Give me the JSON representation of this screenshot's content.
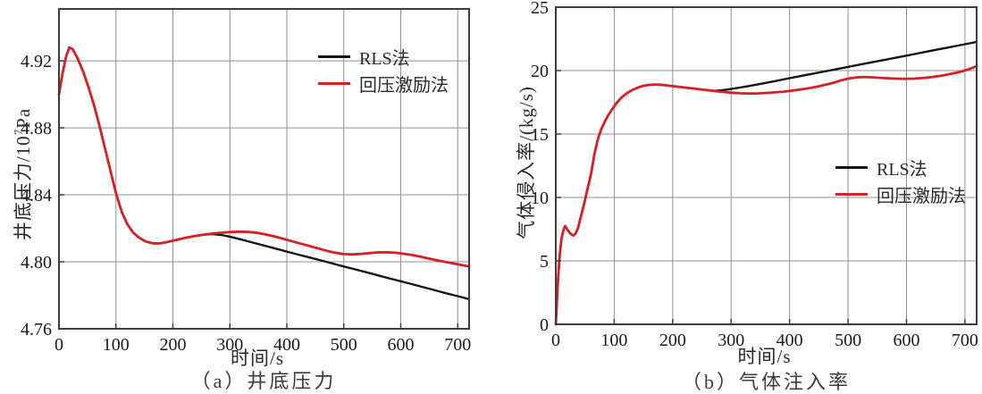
{
  "chart_data": [
    {
      "id": "a",
      "type": "line",
      "caption": "（a）井底压力",
      "xlabel": "时间/s",
      "ylabel": "井底压力/10⁷Pa",
      "ylabel_parts": {
        "base": "井底压力/10",
        "sup": "7",
        "unit": "Pa"
      },
      "xlim": [
        0,
        720
      ],
      "ylim": [
        4.76,
        4.951
      ],
      "xticks": [
        0,
        100,
        200,
        300,
        400,
        500,
        600,
        700
      ],
      "xtick_labels": [
        "0",
        "100",
        "200",
        "300",
        "400",
        "500",
        "600",
        "700"
      ],
      "yticks": [
        4.76,
        4.8,
        4.84,
        4.88,
        4.92
      ],
      "ytick_labels": [
        "4.76",
        "4.80",
        "4.84",
        "4.88",
        "4.92"
      ],
      "grid": true,
      "legend_position": "upper-right-inside",
      "series": [
        {
          "name": "RLS法",
          "color": "#141414",
          "width": 2.4,
          "points": [
            [
              0,
              4.9
            ],
            [
              6,
              4.912
            ],
            [
              12,
              4.922
            ],
            [
              18,
              4.928
            ],
            [
              24,
              4.927
            ],
            [
              32,
              4.922
            ],
            [
              42,
              4.914
            ],
            [
              52,
              4.904
            ],
            [
              62,
              4.893
            ],
            [
              72,
              4.88
            ],
            [
              82,
              4.866
            ],
            [
              92,
              4.852
            ],
            [
              100,
              4.841
            ],
            [
              110,
              4.83
            ],
            [
              120,
              4.8225
            ],
            [
              130,
              4.8175
            ],
            [
              140,
              4.8145
            ],
            [
              152,
              4.8122
            ],
            [
              165,
              4.811
            ],
            [
              178,
              4.811
            ],
            [
              190,
              4.8118
            ],
            [
              205,
              4.813
            ],
            [
              220,
              4.8142
            ],
            [
              240,
              4.8155
            ],
            [
              255,
              4.8162
            ],
            [
              270,
              4.8165
            ],
            [
              285,
              4.816
            ],
            [
              300,
              4.815
            ],
            [
              320,
              4.8133
            ],
            [
              340,
              4.8115
            ],
            [
              360,
              4.8097
            ],
            [
              380,
              4.8079
            ],
            [
              400,
              4.8061
            ],
            [
              420,
              4.8043
            ],
            [
              440,
              4.8026
            ],
            [
              460,
              4.8008
            ],
            [
              480,
              4.799
            ],
            [
              500,
              4.7972
            ],
            [
              520,
              4.7955
            ],
            [
              540,
              4.7937
            ],
            [
              560,
              4.7919
            ],
            [
              580,
              4.7901
            ],
            [
              600,
              4.7884
            ],
            [
              620,
              4.7866
            ],
            [
              640,
              4.7848
            ],
            [
              660,
              4.783
            ],
            [
              680,
              4.7812
            ],
            [
              700,
              4.7795
            ],
            [
              720,
              4.7777
            ]
          ]
        },
        {
          "name": "回压激励法",
          "color": "#d42127",
          "width": 2.8,
          "points": [
            [
              0,
              4.9
            ],
            [
              6,
              4.912
            ],
            [
              12,
              4.922
            ],
            [
              18,
              4.928
            ],
            [
              24,
              4.927
            ],
            [
              32,
              4.922
            ],
            [
              42,
              4.914
            ],
            [
              52,
              4.904
            ],
            [
              62,
              4.893
            ],
            [
              72,
              4.88
            ],
            [
              82,
              4.866
            ],
            [
              92,
              4.852
            ],
            [
              100,
              4.841
            ],
            [
              110,
              4.83
            ],
            [
              120,
              4.8225
            ],
            [
              130,
              4.8175
            ],
            [
              140,
              4.8145
            ],
            [
              152,
              4.8122
            ],
            [
              165,
              4.811
            ],
            [
              178,
              4.811
            ],
            [
              190,
              4.8118
            ],
            [
              205,
              4.813
            ],
            [
              220,
              4.8142
            ],
            [
              240,
              4.8155
            ],
            [
              260,
              4.8165
            ],
            [
              280,
              4.8172
            ],
            [
              300,
              4.8178
            ],
            [
              320,
              4.818
            ],
            [
              335,
              4.8178
            ],
            [
              350,
              4.8172
            ],
            [
              365,
              4.8162
            ],
            [
              380,
              4.815
            ],
            [
              395,
              4.8136
            ],
            [
              410,
              4.8122
            ],
            [
              425,
              4.8108
            ],
            [
              440,
              4.8094
            ],
            [
              455,
              4.808
            ],
            [
              470,
              4.8066
            ],
            [
              485,
              4.8054
            ],
            [
              500,
              4.8046
            ],
            [
              515,
              4.8044
            ],
            [
              530,
              4.8047
            ],
            [
              545,
              4.8052
            ],
            [
              560,
              4.8056
            ],
            [
              575,
              4.8057
            ],
            [
              590,
              4.8054
            ],
            [
              605,
              4.8048
            ],
            [
              620,
              4.804
            ],
            [
              635,
              4.803
            ],
            [
              650,
              4.8019
            ],
            [
              665,
              4.8008
            ],
            [
              680,
              4.7998
            ],
            [
              695,
              4.7988
            ],
            [
              708,
              4.798
            ],
            [
              720,
              4.7972
            ]
          ]
        }
      ]
    },
    {
      "id": "b",
      "type": "line",
      "caption": "（b）气体注入率",
      "xlabel": "时间/s",
      "ylabel": "气体侵入率/(kg/s)",
      "ylabel_parts": {
        "base": "气体侵入率/(kg/s)",
        "sup": "",
        "unit": ""
      },
      "xlim": [
        0,
        720
      ],
      "ylim": [
        0,
        25
      ],
      "xticks": [
        0,
        100,
        200,
        300,
        400,
        500,
        600,
        700
      ],
      "xtick_labels": [
        "0",
        "100",
        "200",
        "300",
        "400",
        "500",
        "600",
        "700"
      ],
      "yticks": [
        0,
        5,
        10,
        15,
        20,
        25
      ],
      "ytick_labels": [
        "0",
        "5",
        "10",
        "15",
        "20",
        "25"
      ],
      "grid": true,
      "legend_position": "middle-right-inside",
      "series": [
        {
          "name": "RLS法",
          "color": "#141414",
          "width": 2.4,
          "points": [
            [
              0,
              0
            ],
            [
              2,
              1.8
            ],
            [
              4,
              3.6
            ],
            [
              6,
              5.0
            ],
            [
              8,
              6.0
            ],
            [
              10,
              6.8
            ],
            [
              13,
              7.4
            ],
            [
              16,
              7.75
            ],
            [
              20,
              7.45
            ],
            [
              25,
              7.15
            ],
            [
              30,
              7.0
            ],
            [
              34,
              7.15
            ],
            [
              38,
              7.6
            ],
            [
              43,
              8.5
            ],
            [
              48,
              9.4
            ],
            [
              54,
              10.6
            ],
            [
              60,
              11.8
            ],
            [
              66,
              13.4
            ],
            [
              72,
              14.6
            ],
            [
              78,
              15.4
            ],
            [
              84,
              16.0
            ],
            [
              90,
              16.5
            ],
            [
              97,
              17.0
            ],
            [
              105,
              17.5
            ],
            [
              113,
              17.9
            ],
            [
              121,
              18.2
            ],
            [
              130,
              18.45
            ],
            [
              140,
              18.65
            ],
            [
              150,
              18.8
            ],
            [
              160,
              18.87
            ],
            [
              170,
              18.9
            ],
            [
              182,
              18.87
            ],
            [
              195,
              18.8
            ],
            [
              210,
              18.72
            ],
            [
              225,
              18.64
            ],
            [
              240,
              18.56
            ],
            [
              255,
              18.48
            ],
            [
              270,
              18.4
            ],
            [
              285,
              18.45
            ],
            [
              300,
              18.55
            ],
            [
              315,
              18.66
            ],
            [
              330,
              18.78
            ],
            [
              350,
              18.95
            ],
            [
              375,
              19.17
            ],
            [
              400,
              19.4
            ],
            [
              430,
              19.67
            ],
            [
              460,
              19.93
            ],
            [
              490,
              20.2
            ],
            [
              520,
              20.47
            ],
            [
              550,
              20.73
            ],
            [
              580,
              21.0
            ],
            [
              610,
              21.27
            ],
            [
              640,
              21.54
            ],
            [
              670,
              21.81
            ],
            [
              700,
              22.08
            ],
            [
              720,
              22.26
            ]
          ]
        },
        {
          "name": "回压激励法",
          "color": "#d42127",
          "width": 2.8,
          "points": [
            [
              0,
              0
            ],
            [
              2,
              1.8
            ],
            [
              4,
              3.6
            ],
            [
              6,
              5.0
            ],
            [
              8,
              6.0
            ],
            [
              10,
              6.8
            ],
            [
              13,
              7.4
            ],
            [
              16,
              7.75
            ],
            [
              20,
              7.45
            ],
            [
              25,
              7.15
            ],
            [
              30,
              7.0
            ],
            [
              34,
              7.15
            ],
            [
              38,
              7.6
            ],
            [
              43,
              8.5
            ],
            [
              48,
              9.4
            ],
            [
              54,
              10.6
            ],
            [
              60,
              11.8
            ],
            [
              66,
              13.4
            ],
            [
              72,
              14.6
            ],
            [
              78,
              15.4
            ],
            [
              84,
              16.0
            ],
            [
              90,
              16.5
            ],
            [
              97,
              17.0
            ],
            [
              105,
              17.5
            ],
            [
              113,
              17.9
            ],
            [
              121,
              18.2
            ],
            [
              130,
              18.45
            ],
            [
              140,
              18.65
            ],
            [
              150,
              18.8
            ],
            [
              160,
              18.87
            ],
            [
              170,
              18.9
            ],
            [
              182,
              18.87
            ],
            [
              195,
              18.8
            ],
            [
              210,
              18.72
            ],
            [
              225,
              18.64
            ],
            [
              240,
              18.56
            ],
            [
              255,
              18.48
            ],
            [
              270,
              18.4
            ],
            [
              285,
              18.32
            ],
            [
              300,
              18.26
            ],
            [
              315,
              18.21
            ],
            [
              330,
              18.19
            ],
            [
              345,
              18.2
            ],
            [
              360,
              18.24
            ],
            [
              375,
              18.28
            ],
            [
              390,
              18.34
            ],
            [
              405,
              18.42
            ],
            [
              420,
              18.52
            ],
            [
              435,
              18.63
            ],
            [
              450,
              18.76
            ],
            [
              465,
              18.92
            ],
            [
              478,
              19.08
            ],
            [
              490,
              19.25
            ],
            [
              502,
              19.38
            ],
            [
              514,
              19.46
            ],
            [
              526,
              19.49
            ],
            [
              540,
              19.47
            ],
            [
              555,
              19.43
            ],
            [
              570,
              19.39
            ],
            [
              585,
              19.36
            ],
            [
              600,
              19.35
            ],
            [
              615,
              19.37
            ],
            [
              630,
              19.42
            ],
            [
              645,
              19.5
            ],
            [
              660,
              19.6
            ],
            [
              675,
              19.73
            ],
            [
              690,
              19.88
            ],
            [
              705,
              20.08
            ],
            [
              720,
              20.35
            ]
          ]
        }
      ]
    }
  ],
  "style": {
    "grid_color": "#909090",
    "border_color": "#3d3d3d",
    "tick_color": "#1a1a1a"
  }
}
